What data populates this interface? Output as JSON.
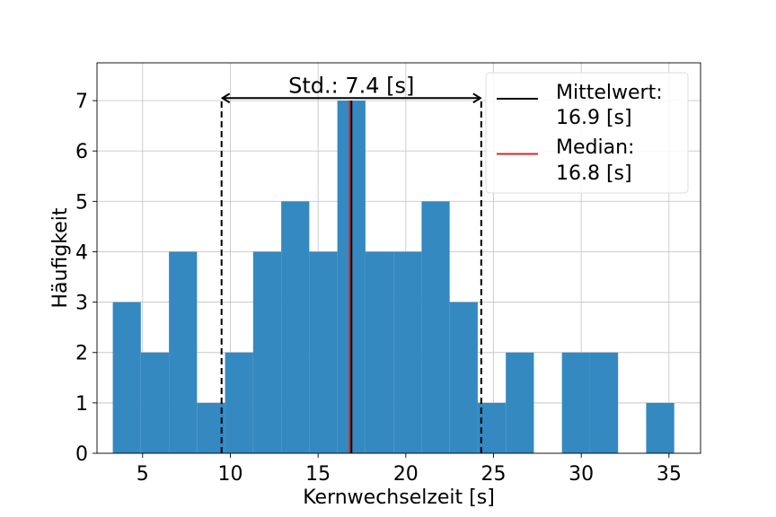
{
  "chart_data": {
    "type": "bar",
    "title": "",
    "xlabel": "Kernwechselzeit [s]",
    "ylabel": "Häufigkeit",
    "xlim": [
      2.4,
      36.8
    ],
    "ylim": [
      0,
      7.75
    ],
    "xticks": [
      5,
      10,
      15,
      20,
      25,
      30,
      35
    ],
    "yticks": [
      0,
      1,
      2,
      3,
      4,
      5,
      6,
      7
    ],
    "grid": true,
    "bar_color": "#3489c0",
    "bin_edges": [
      3.3,
      4.9,
      6.5,
      8.1,
      9.7,
      11.3,
      12.9,
      14.5,
      16.1,
      17.7,
      19.3,
      20.9,
      22.5,
      24.1,
      25.7,
      27.3,
      28.9,
      30.5,
      32.1,
      33.7,
      35.3
    ],
    "bins": [
      {
        "x0": 3.3,
        "x1": 4.9,
        "count": 3
      },
      {
        "x0": 4.9,
        "x1": 6.5,
        "count": 2
      },
      {
        "x0": 6.5,
        "x1": 8.1,
        "count": 4
      },
      {
        "x0": 8.1,
        "x1": 9.7,
        "count": 1
      },
      {
        "x0": 9.7,
        "x1": 11.3,
        "count": 2
      },
      {
        "x0": 11.3,
        "x1": 12.9,
        "count": 4
      },
      {
        "x0": 12.9,
        "x1": 14.5,
        "count": 5
      },
      {
        "x0": 14.5,
        "x1": 16.1,
        "count": 4
      },
      {
        "x0": 16.1,
        "x1": 17.7,
        "count": 7
      },
      {
        "x0": 17.7,
        "x1": 19.3,
        "count": 4
      },
      {
        "x0": 19.3,
        "x1": 20.9,
        "count": 4
      },
      {
        "x0": 20.9,
        "x1": 22.5,
        "count": 5
      },
      {
        "x0": 22.5,
        "x1": 24.1,
        "count": 3
      },
      {
        "x0": 24.1,
        "x1": 25.7,
        "count": 1
      },
      {
        "x0": 25.7,
        "x1": 27.3,
        "count": 2
      },
      {
        "x0": 27.3,
        "x1": 28.9,
        "count": 0
      },
      {
        "x0": 28.9,
        "x1": 30.5,
        "count": 2
      },
      {
        "x0": 30.5,
        "x1": 32.1,
        "count": 2
      },
      {
        "x0": 32.1,
        "x1": 33.7,
        "count": 0
      },
      {
        "x0": 33.7,
        "x1": 35.3,
        "count": 1
      }
    ],
    "mean_line": {
      "x": 16.9,
      "color": "#000000"
    },
    "median_line": {
      "x": 16.8,
      "color": "#d62728"
    },
    "std_band": {
      "x_left": 9.5,
      "x_right": 24.3,
      "y": 7.05,
      "color": "#000000"
    },
    "std_annotation": "Std.: 7.4 [s]",
    "legend": {
      "location": "upper right",
      "entries": [
        {
          "label_line1": "Mittelwert:",
          "label_line2": "16.9 [s]",
          "color": "#000000"
        },
        {
          "label_line1": "Median:",
          "label_line2": "16.8 [s]",
          "color": "#d62728"
        }
      ]
    }
  }
}
